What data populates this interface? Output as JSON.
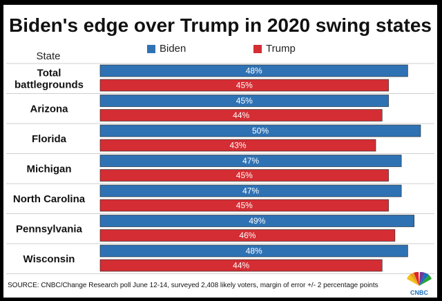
{
  "title": "Biden's edge over Trump in 2020 swing states",
  "state_header": "State",
  "source": "SOURCE: CNBC/Change Research poll June 12-14, surveyed 2,408 likely voters, margin of error +/- 2 percentage points",
  "logo_text": "CNBC",
  "colors": {
    "biden": "#2f72b4",
    "trump": "#d42d33"
  },
  "chart_data": {
    "type": "bar",
    "orientation": "horizontal",
    "title": "Biden's edge over Trump in 2020 swing states",
    "xlabel": "",
    "ylabel": "State",
    "xlim": [
      0,
      50
    ],
    "legend": "top",
    "categories": [
      [
        "Total",
        "battlegrounds"
      ],
      [
        "Arizona"
      ],
      [
        "Florida"
      ],
      [
        "Michigan"
      ],
      [
        "North Carolina"
      ],
      [
        "Pennsylvania"
      ],
      [
        "Wisconsin"
      ]
    ],
    "series": [
      {
        "name": "Biden",
        "values": [
          48,
          45,
          50,
          47,
          47,
          49,
          48
        ],
        "labels": [
          "48%",
          "45%",
          "50%",
          "47%",
          "47%",
          "49%",
          "48%"
        ]
      },
      {
        "name": "Trump",
        "values": [
          45,
          44,
          43,
          45,
          45,
          46,
          44
        ],
        "labels": [
          "45%",
          "44%",
          "43%",
          "45%",
          "45%",
          "46%",
          "44%"
        ]
      }
    ]
  }
}
